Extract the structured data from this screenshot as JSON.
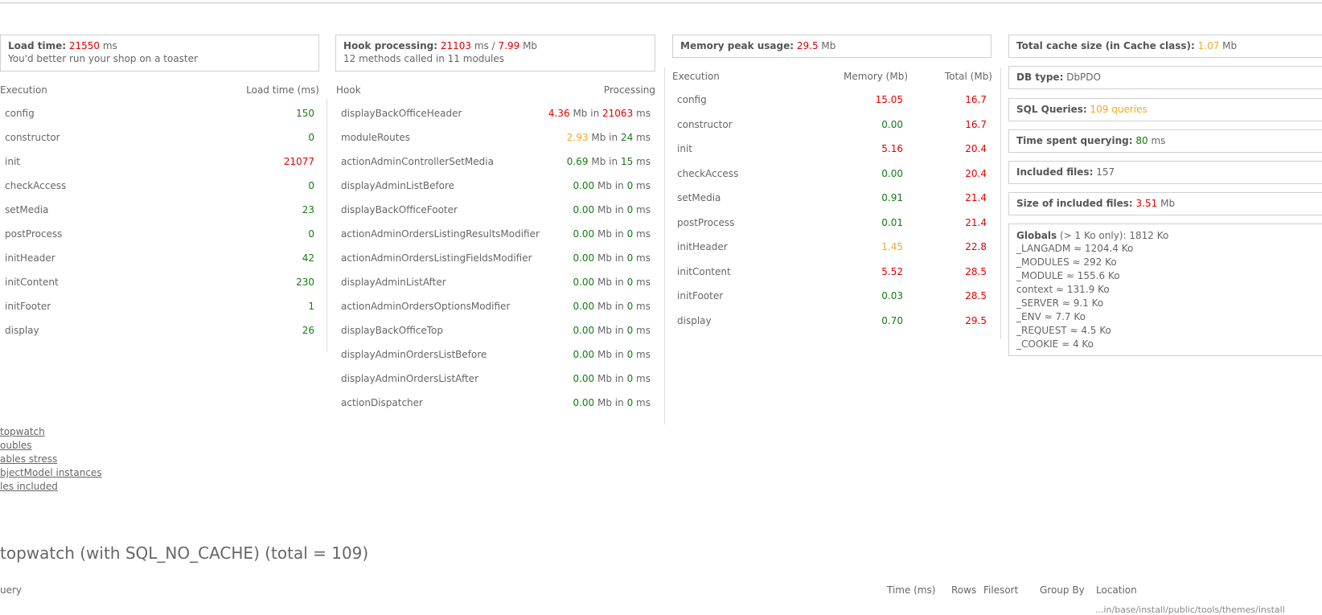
{
  "load_box": {
    "label": "Load time:",
    "value": "21550",
    "unit": "ms",
    "note": "You'd better run your shop on a toaster"
  },
  "exec_table": {
    "col1": "Execution",
    "col2": "Load time (ms)",
    "rows": [
      {
        "name": "config",
        "value": "150",
        "color": "green"
      },
      {
        "name": "constructor",
        "value": "0",
        "color": "green"
      },
      {
        "name": "init",
        "value": "21077",
        "color": "red"
      },
      {
        "name": "checkAccess",
        "value": "0",
        "color": "green"
      },
      {
        "name": "setMedia",
        "value": "23",
        "color": "green"
      },
      {
        "name": "postProcess",
        "value": "0",
        "color": "green"
      },
      {
        "name": "initHeader",
        "value": "42",
        "color": "green"
      },
      {
        "name": "initContent",
        "value": "230",
        "color": "green"
      },
      {
        "name": "initFooter",
        "value": "1",
        "color": "green"
      },
      {
        "name": "display",
        "value": "26",
        "color": "green"
      }
    ]
  },
  "hook_box": {
    "label": "Hook processing:",
    "time": "21103",
    "time_unit": "ms",
    "sep": "/",
    "mem": "7.99",
    "mem_unit": "Mb",
    "note": "12 methods called in 11 modules"
  },
  "hook_table": {
    "col1": "Hook",
    "col2": "Processing",
    "rows": [
      {
        "name": "displayBackOfficeHeader",
        "mem": "4.36",
        "mem_color": "red",
        "time": "21063",
        "time_color": "red"
      },
      {
        "name": "moduleRoutes",
        "mem": "2.93",
        "mem_color": "orange",
        "time": "24",
        "time_color": "green"
      },
      {
        "name": "actionAdminControllerSetMedia",
        "mem": "0.69",
        "mem_color": "green",
        "time": "15",
        "time_color": "green"
      },
      {
        "name": "displayAdminListBefore",
        "mem": "0.00",
        "mem_color": "green",
        "time": "0",
        "time_color": "green"
      },
      {
        "name": "displayBackOfficeFooter",
        "mem": "0.00",
        "mem_color": "green",
        "time": "0",
        "time_color": "green"
      },
      {
        "name": "actionAdminOrdersListingResultsModifier",
        "mem": "0.00",
        "mem_color": "green",
        "time": "0",
        "time_color": "green"
      },
      {
        "name": "actionAdminOrdersListingFieldsModifier",
        "mem": "0.00",
        "mem_color": "green",
        "time": "0",
        "time_color": "green"
      },
      {
        "name": "displayAdminListAfter",
        "mem": "0.00",
        "mem_color": "green",
        "time": "0",
        "time_color": "green"
      },
      {
        "name": "actionAdminOrdersOptionsModifier",
        "mem": "0.00",
        "mem_color": "green",
        "time": "0",
        "time_color": "green"
      },
      {
        "name": "displayBackOfficeTop",
        "mem": "0.00",
        "mem_color": "green",
        "time": "0",
        "time_color": "green"
      },
      {
        "name": "displayAdminOrdersListBefore",
        "mem": "0.00",
        "mem_color": "green",
        "time": "0",
        "time_color": "green"
      },
      {
        "name": "displayAdminOrdersListAfter",
        "mem": "0.00",
        "mem_color": "green",
        "time": "0",
        "time_color": "green"
      },
      {
        "name": "actionDispatcher",
        "mem": "0.00",
        "mem_color": "green",
        "time": "0",
        "time_color": "green"
      }
    ],
    "mb_word": "Mb",
    "in_word": "in",
    "ms_word": "ms"
  },
  "mem_box": {
    "label": "Memory peak usage:",
    "value": "29.5",
    "unit": "Mb"
  },
  "mem_table": {
    "col1": "Execution",
    "col2": "Memory (Mb)",
    "col3": "Total (Mb)",
    "rows": [
      {
        "name": "config",
        "mem": "15.05",
        "mem_color": "red",
        "total": "16.7"
      },
      {
        "name": "constructor",
        "mem": "0.00",
        "mem_color": "green",
        "total": "16.7"
      },
      {
        "name": "init",
        "mem": "5.16",
        "mem_color": "red",
        "total": "20.4"
      },
      {
        "name": "checkAccess",
        "mem": "0.00",
        "mem_color": "green",
        "total": "20.4"
      },
      {
        "name": "setMedia",
        "mem": "0.91",
        "mem_color": "green",
        "total": "21.4"
      },
      {
        "name": "postProcess",
        "mem": "0.01",
        "mem_color": "green",
        "total": "21.4"
      },
      {
        "name": "initHeader",
        "mem": "1.45",
        "mem_color": "orange",
        "total": "22.8"
      },
      {
        "name": "initContent",
        "mem": "5.52",
        "mem_color": "red",
        "total": "28.5"
      },
      {
        "name": "initFooter",
        "mem": "0.03",
        "mem_color": "green",
        "total": "28.5"
      },
      {
        "name": "display",
        "mem": "0.70",
        "mem_color": "green",
        "total": "29.5"
      }
    ]
  },
  "info": {
    "cache": {
      "label": "Total cache size (in Cache class):",
      "value": "1.07",
      "unit": "Mb"
    },
    "dbtype": {
      "label": "DB type:",
      "value": "DbPDO"
    },
    "sql": {
      "label": "SQL Queries:",
      "value": "109 queries"
    },
    "time": {
      "label": "Time spent querying:",
      "value": "80",
      "unit": "ms"
    },
    "files": {
      "label": "Included files:",
      "value": "157"
    },
    "size": {
      "label": "Size of included files:",
      "value": "3.51",
      "unit": "Mb"
    },
    "globals": {
      "label": "Globals",
      "qualifier": "(> 1 Ko only): 1812 Ko",
      "items": [
        "_LANGADM ≈ 1204.4 Ko",
        "_MODULES ≈ 292 Ko",
        "_MODULE ≈ 155.6 Ko",
        "context ≈ 131.9 Ko",
        "_SERVER ≈ 9.1 Ko",
        "_ENV ≈ 7.7 Ko",
        "_REQUEST ≈ 4.5 Ko",
        "_COOKIE ≈ 4 Ko"
      ]
    }
  },
  "links": [
    "topwatch",
    "oubles",
    "ables stress",
    "bjectModel instances",
    "les included"
  ],
  "sql_section": {
    "title": "topwatch (with SQL_NO_CACHE) (total = 109)",
    "col_query": "uery",
    "col_time": "Time (ms)",
    "col_rows": "Rows",
    "col_filesort": "Filesort",
    "col_groupby": "Group By",
    "col_location": "Location",
    "cut_text": "...in/base/install/public/tools/themes/install"
  }
}
